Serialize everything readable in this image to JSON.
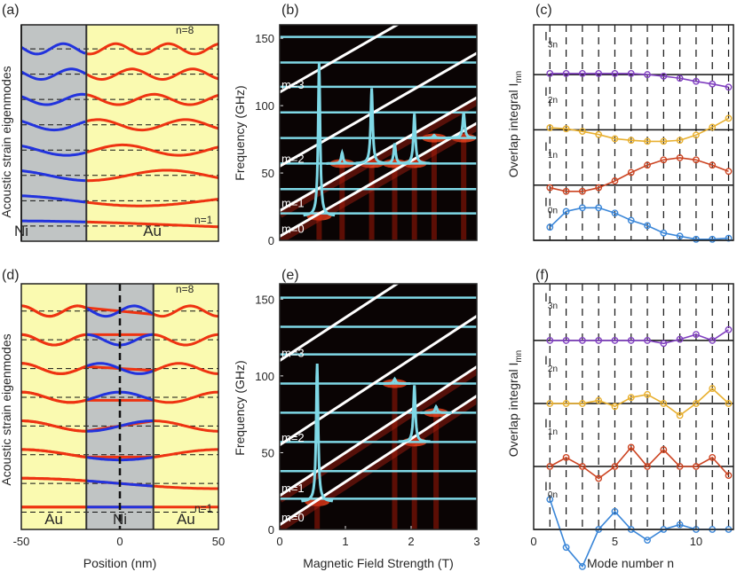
{
  "panel_labels": [
    "(a)",
    "(b)",
    "(c)",
    "(d)",
    "(e)",
    "(f)"
  ],
  "colors": {
    "ni_fill": "#c0c4c4",
    "au_fill": "#fafab0",
    "ni_wave": "#2233dd",
    "au_wave": "#ee3311",
    "heat_bg": "#0a0404",
    "cyan": "#7fd8e6",
    "white_line": "#ffffff",
    "series_m0": "#3a86d8",
    "series_m1": "#cc4422",
    "series_m2": "#e8b030",
    "series_m3": "#8040c0"
  },
  "chart_data": [
    {
      "id": "a",
      "type": "line",
      "title": "(a)",
      "xlabel": "",
      "ylabel": "Acoustic strain eigenmodes",
      "xlim": [
        -50,
        50
      ],
      "ni_region": [
        -50,
        -17
      ],
      "region_labels": [
        "Ni",
        "Au"
      ],
      "mode_labels": {
        "top": "n=8",
        "bottom": "n=1"
      },
      "modes": [
        1,
        2,
        3,
        4,
        5,
        6,
        7,
        8
      ]
    },
    {
      "id": "b",
      "type": "heatmap",
      "title": "(b)",
      "xlabel": "",
      "ylabel": "Frequency (GHz)",
      "xlim": [
        0,
        3
      ],
      "ylim": [
        0,
        160
      ],
      "yticks": [
        0,
        50,
        100,
        150
      ],
      "acoustic_modes_ghz": [
        20,
        38,
        57,
        76,
        95,
        114,
        132,
        151
      ],
      "magnon_branches": [
        {
          "label": "m=0",
          "f0": 3,
          "slope": 28
        },
        {
          "label": "m=1",
          "f0": 22,
          "slope": 28
        },
        {
          "label": "m=2",
          "f0": 55,
          "slope": 28
        },
        {
          "label": "m=3",
          "f0": 110,
          "slope": 28
        }
      ],
      "cyan_peaks": [
        {
          "x": 0.6,
          "base": 18,
          "peak": 132
        },
        {
          "x": 0.95,
          "base": 57,
          "peak": 65
        },
        {
          "x": 1.4,
          "base": 57,
          "peak": 113
        },
        {
          "x": 1.75,
          "base": 57,
          "peak": 72
        },
        {
          "x": 2.05,
          "base": 57,
          "peak": 94
        },
        {
          "x": 2.35,
          "base": 76,
          "peak": 78
        },
        {
          "x": 2.8,
          "base": 76,
          "peak": 95
        }
      ]
    },
    {
      "id": "c",
      "type": "line",
      "title": "(c)",
      "xlabel": "",
      "ylabel": "Overlap integral  I",
      "ylabel_sub": "mn",
      "xlim": [
        0,
        12.3
      ],
      "x": [
        1,
        2,
        3,
        4,
        5,
        6,
        7,
        8,
        9,
        10,
        11,
        12
      ],
      "series": [
        {
          "name": "I0n",
          "label": "I",
          "sub": "0n",
          "offset": 0,
          "values": [
            0.25,
            0.55,
            0.62,
            0.62,
            0.52,
            0.38,
            0.28,
            0.14,
            0.08,
            0.02,
            0.02,
            0.04
          ]
        },
        {
          "name": "I1n",
          "label": "I",
          "sub": "1n",
          "offset": 1,
          "values": [
            -0.05,
            -0.12,
            -0.12,
            -0.05,
            0.08,
            0.24,
            0.38,
            0.48,
            0.52,
            0.48,
            0.38,
            0.26
          ]
        },
        {
          "name": "I2n",
          "label": "I",
          "sub": "2n",
          "offset": 2,
          "values": [
            0.04,
            0.02,
            -0.03,
            -0.09,
            -0.17,
            -0.2,
            -0.22,
            -0.22,
            -0.2,
            -0.1,
            0.05,
            0.22
          ]
        },
        {
          "name": "I3n",
          "label": "I",
          "sub": "3n",
          "offset": 3,
          "values": [
            0.02,
            0.02,
            0.02,
            0.02,
            0.02,
            0.02,
            0.0,
            -0.03,
            -0.07,
            -0.13,
            -0.18,
            -0.24
          ]
        }
      ]
    },
    {
      "id": "d",
      "type": "line",
      "title": "(d)",
      "xlabel": "Position (nm)",
      "ylabel": "Acoustic strain eigenmodes",
      "xlim": [
        -50,
        50
      ],
      "xticks": [
        -50,
        0,
        50
      ],
      "ni_region": [
        -17,
        17
      ],
      "region_labels": [
        "Au",
        "Ni",
        "Au"
      ],
      "mode_labels": {
        "top": "n=8",
        "bottom": "n=1"
      },
      "modes": [
        1,
        2,
        3,
        4,
        5,
        6,
        7,
        8
      ]
    },
    {
      "id": "e",
      "type": "heatmap",
      "title": "(e)",
      "xlabel": "Magnetic Field Strength (T)",
      "ylabel": "Frequency (GHz)",
      "xlim": [
        0,
        3
      ],
      "ylim": [
        0,
        160
      ],
      "xticks": [
        0,
        1,
        2,
        3
      ],
      "yticks": [
        0,
        50,
        100,
        150
      ],
      "acoustic_modes_ghz": [
        20,
        38,
        57,
        76,
        95,
        114,
        132,
        151
      ],
      "magnon_branches": [
        {
          "label": "m=0",
          "f0": 3,
          "slope": 28
        },
        {
          "label": "m=1",
          "f0": 22,
          "slope": 28
        },
        {
          "label": "m=2",
          "f0": 55,
          "slope": 28
        },
        {
          "label": "m=3",
          "f0": 110,
          "slope": 28
        }
      ],
      "cyan_peaks": [
        {
          "x": 0.57,
          "base": 18,
          "peak": 108
        },
        {
          "x": 1.75,
          "base": 95,
          "peak": 98
        },
        {
          "x": 2.05,
          "base": 57,
          "peak": 94
        },
        {
          "x": 2.38,
          "base": 76,
          "peak": 80
        }
      ]
    },
    {
      "id": "f",
      "type": "line",
      "title": "(f)",
      "xlabel": "Mode number n",
      "ylabel": "Overlap integral  I",
      "ylabel_sub": "mn",
      "xlim": [
        0,
        12.3
      ],
      "xticks": [
        0,
        5,
        10
      ],
      "x": [
        1,
        2,
        3,
        4,
        5,
        6,
        7,
        8,
        9,
        10,
        11,
        12
      ],
      "series": [
        {
          "name": "I0n",
          "label": "I",
          "sub": "0n",
          "offset": 0,
          "values": [
            0.5,
            -0.3,
            -0.62,
            0.0,
            0.3,
            0.0,
            -0.18,
            0.0,
            0.08,
            0.0,
            0.0,
            0.0
          ]
        },
        {
          "name": "I1n",
          "label": "I",
          "sub": "1n",
          "offset": 1,
          "values": [
            0.0,
            0.15,
            0.0,
            -0.2,
            0.0,
            0.32,
            0.0,
            0.28,
            0.0,
            0.0,
            0.15,
            -0.15
          ]
        },
        {
          "name": "I2n",
          "label": "I",
          "sub": "2n",
          "offset": 2,
          "values": [
            0.0,
            0.0,
            0.0,
            0.05,
            -0.05,
            0.1,
            0.15,
            0.0,
            -0.2,
            0.0,
            0.25,
            0.0
          ]
        },
        {
          "name": "I3n",
          "label": "I",
          "sub": "3n",
          "offset": 3,
          "values": [
            0.0,
            0.0,
            0.0,
            0.0,
            0.0,
            0.0,
            0.0,
            -0.05,
            0.02,
            0.1,
            0.0,
            0.18
          ]
        }
      ]
    }
  ]
}
